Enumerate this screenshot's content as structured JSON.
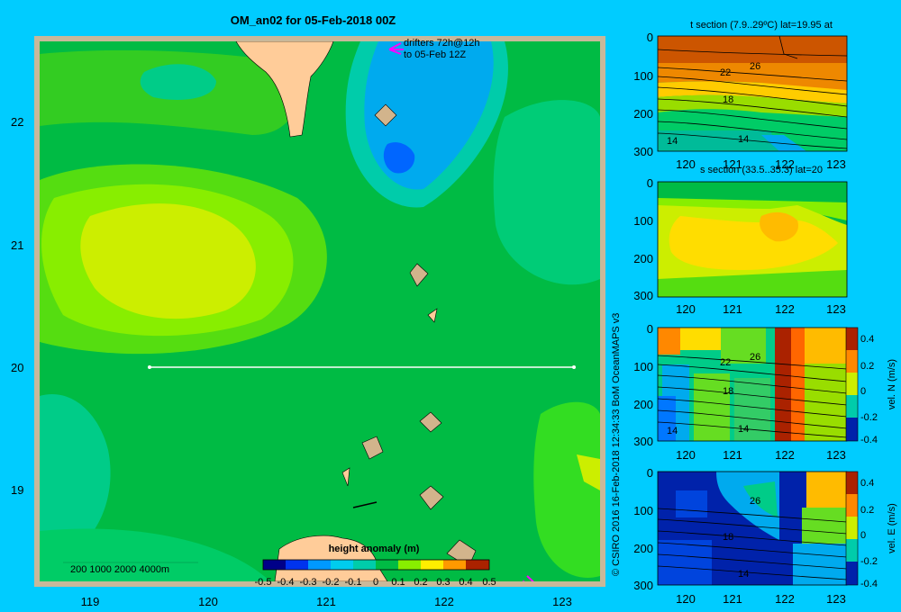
{
  "main_map": {
    "title": "OM_an02 for 05-Feb-2018 00Z",
    "drifters_line1": "drifters 72h@12h",
    "drifters_line2": "to 05-Feb 12Z",
    "lat_ticks": [
      "22",
      "21",
      "20",
      "19"
    ],
    "lon_ticks": [
      "119",
      "120",
      "121",
      "122",
      "123"
    ],
    "depth_legend": "200  1000  2000  4000m",
    "colorbar_title": "height anomaly (m)",
    "colorbar_ticks": [
      "-0.5",
      "-0.4",
      "-0.3",
      "-0.2",
      "-0.1",
      "0",
      "0.1",
      "0.2",
      "0.3",
      "0.4",
      "0.5"
    ]
  },
  "credit": "© CSIRO 2016   16-Feb-2018 12:34:33 BoM OceanMAPS v3",
  "sections": [
    {
      "title": "t section (7.9..29ºC) lat=19.95 at",
      "depth_ticks": [
        "0",
        "100",
        "200",
        "300"
      ],
      "lon_ticks": [
        "120",
        "121",
        "122",
        "123"
      ],
      "contour_labels": [
        "22",
        "26",
        "18",
        "14",
        "14"
      ]
    },
    {
      "title": "s section (33.5..35.3) lat=20",
      "depth_ticks": [
        "0",
        "100",
        "200",
        "300"
      ],
      "lon_ticks": [
        "120",
        "121",
        "122",
        "123"
      ]
    },
    {
      "title": "",
      "depth_ticks": [
        "0",
        "100",
        "200",
        "300"
      ],
      "lon_ticks": [
        "120",
        "121",
        "122",
        "123"
      ],
      "contour_labels": [
        "22",
        "26",
        "18",
        "14",
        "14"
      ],
      "cbar_ticks": [
        "0.4",
        "0.2",
        "0",
        "-0.2",
        "-0.4"
      ],
      "cbar_label": "vel. N (m/s)"
    },
    {
      "title": "",
      "depth_ticks": [
        "0",
        "100",
        "200",
        "300"
      ],
      "lon_ticks": [
        "120",
        "121",
        "122",
        "123"
      ],
      "contour_labels": [
        "26",
        "18",
        "14"
      ],
      "cbar_ticks": [
        "0.4",
        "0.2",
        "0",
        "-0.2",
        "-0.4"
      ],
      "cbar_label": "vel. E (m/s)"
    }
  ],
  "colors": {
    "background": "#00ccff",
    "land": "#ffcc99",
    "reef": "#d2b48c",
    "drifter": "#ff00ff",
    "section_line": "#ffffff"
  }
}
